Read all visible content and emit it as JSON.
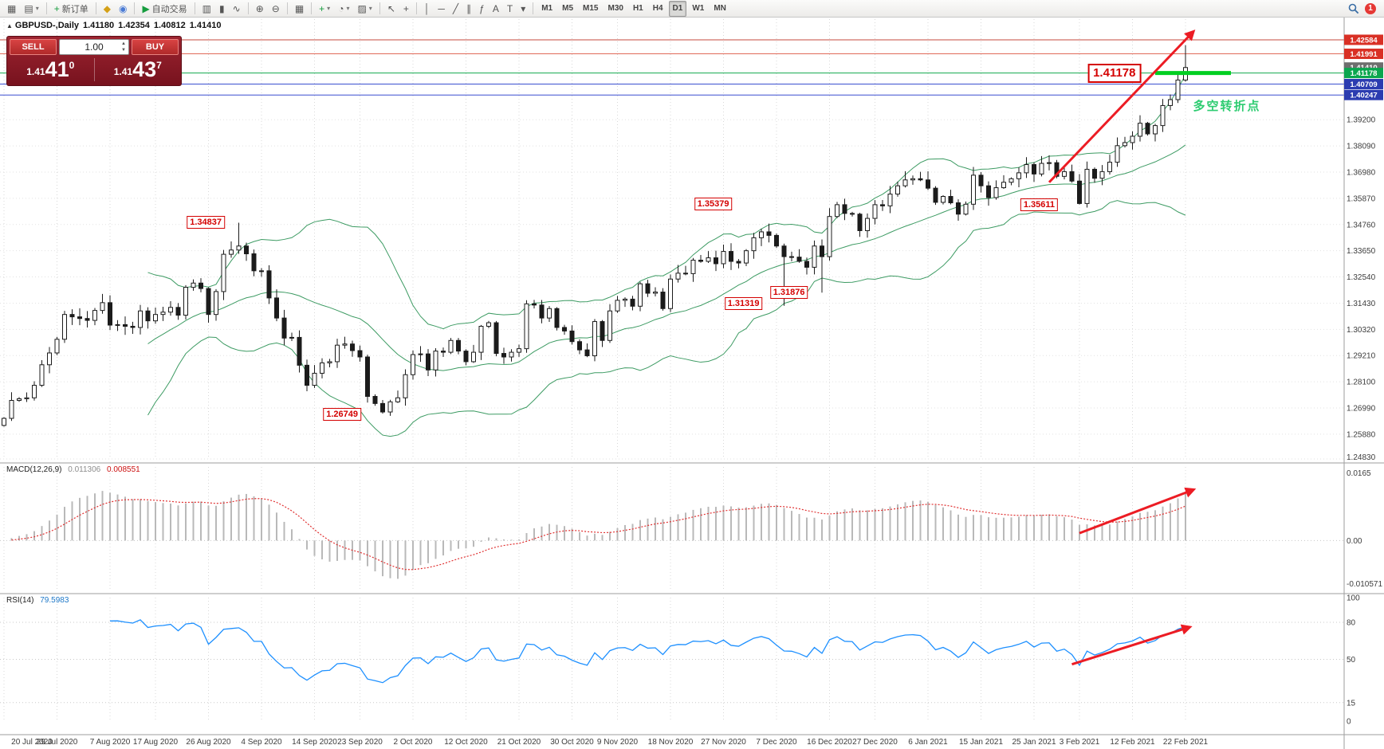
{
  "toolbar": {
    "groups": [
      {
        "items": [
          {
            "n": "new-chart",
            "g": "▦"
          },
          {
            "n": "chart-profiles",
            "g": "▤",
            "arrow": true
          }
        ]
      },
      {
        "items": [
          {
            "n": "new-order",
            "g": "+",
            "gc": "#169c3e",
            "label": "新订单"
          }
        ]
      },
      {
        "items": [
          {
            "n": "deposit",
            "g": "◆",
            "gc": "#d4a017"
          },
          {
            "n": "alerts",
            "g": "◉",
            "gc": "#4a7bd5"
          }
        ]
      },
      {
        "items": [
          {
            "n": "auto-trading",
            "g": "▶",
            "gc": "#169c3e",
            "label": "自动交易"
          }
        ]
      },
      {
        "items": [
          {
            "n": "bar-chart-type",
            "g": "▥"
          },
          {
            "n": "candlestick-type",
            "g": "▮"
          },
          {
            "n": "line-chart-type",
            "g": "∿"
          }
        ]
      },
      {
        "items": [
          {
            "n": "zoom-in",
            "g": "⊕"
          },
          {
            "n": "zoom-out",
            "g": "⊖"
          }
        ]
      },
      {
        "items": [
          {
            "n": "tile-windows",
            "g": "▦"
          }
        ]
      },
      {
        "items": [
          {
            "n": "add-indicator",
            "g": "+",
            "gc": "#169c3e",
            "arrow": true
          },
          {
            "n": "period",
            "g": "◔",
            "arrow": true
          },
          {
            "n": "templates",
            "g": "▨",
            "arrow": true
          }
        ]
      },
      {
        "items": [
          {
            "n": "cursor",
            "g": "↖"
          },
          {
            "n": "crosshair",
            "g": "+"
          }
        ]
      },
      {
        "items": [
          {
            "n": "vertical-line",
            "g": "│"
          },
          {
            "n": "horizontal-line",
            "g": "─"
          },
          {
            "n": "trend-line",
            "g": "╱"
          },
          {
            "n": "channel",
            "g": "∥"
          },
          {
            "n": "fibonacci",
            "g": "ƒ"
          },
          {
            "n": "text",
            "g": "A"
          },
          {
            "n": "text-label",
            "g": "T"
          },
          {
            "n": "shapes",
            "g": "▾"
          }
        ]
      }
    ],
    "timeframes": [
      "M1",
      "M5",
      "M15",
      "M30",
      "H1",
      "H4",
      "D1",
      "W1",
      "MN"
    ],
    "active_timeframe": "D1",
    "notification_count": "1"
  },
  "chart_header": {
    "symbol": "GBPUSD-,Daily",
    "open": "1.41180",
    "high": "1.42354",
    "low": "1.40812",
    "close": "1.41410"
  },
  "one_click": {
    "sell_label": "SELL",
    "buy_label": "BUY",
    "volume": "1.00",
    "bid_prefix": "1.41",
    "bid_big": "41",
    "bid_pip": "0",
    "ask_prefix": "1.41",
    "ask_big": "43",
    "ask_pip": "7"
  },
  "chart_data": {
    "type": "candlestick",
    "symbol": "GBPUSD-",
    "timeframe": "Daily",
    "title": "GBPUSD-,Daily 1.41180 1.42354 1.40812 1.41410",
    "x_labels": [
      "20 Jul 2020",
      "29 Jul 2020",
      "7 Aug 2020",
      "17 Aug 2020",
      "26 Aug 2020",
      "4 Sep 2020",
      "14 Sep 2020",
      "23 Sep 2020",
      "2 Oct 2020",
      "12 Oct 2020",
      "21 Oct 2020",
      "30 Oct 2020",
      "9 Nov 2020",
      "18 Nov 2020",
      "27 Nov 2020",
      "7 Dec 2020",
      "16 Dec 2020",
      "27 Dec 2020",
      "6 Jan 2021",
      "15 Jan 2021",
      "25 Jan 2021",
      "3 Feb 2021",
      "12 Feb 2021",
      "22 Feb 2021"
    ],
    "y_axis": {
      "labels": [
        "1.39200",
        "1.38090",
        "1.36980",
        "1.35870",
        "1.34760",
        "1.33650",
        "1.32540",
        "1.31430",
        "1.30320",
        "1.29210",
        "1.28100",
        "1.26990",
        "1.25880",
        "1.24830"
      ],
      "values": [
        1.392,
        1.3809,
        1.3698,
        1.3587,
        1.3476,
        1.3365,
        1.3254,
        1.3143,
        1.3032,
        1.2921,
        1.281,
        1.2699,
        1.2588,
        1.2483
      ]
    },
    "y_range": [
      1.2483,
      1.4346
    ],
    "closes": [
      1.2655,
      1.2731,
      1.2738,
      1.2742,
      1.2795,
      1.2882,
      1.2932,
      1.299,
      1.3095,
      1.3085,
      1.3078,
      1.307,
      1.3112,
      1.3145,
      1.305,
      1.3052,
      1.3045,
      1.304,
      1.311,
      1.3068,
      1.3095,
      1.3105,
      1.3125,
      1.3092,
      1.321,
      1.3228,
      1.3205,
      1.3095,
      1.3192,
      1.335,
      1.3368,
      1.3385,
      1.3352,
      1.328,
      1.328,
      1.3165,
      1.308,
      1.2995,
      1.2998,
      1.288,
      1.2795,
      1.2846,
      1.289,
      1.2895,
      1.2965,
      1.297,
      1.2942,
      1.2915,
      1.2748,
      1.2718,
      1.2682,
      1.2725,
      1.2742,
      1.284,
      1.2925,
      1.2928,
      1.286,
      1.294,
      1.2935,
      1.2985,
      1.294,
      1.2895,
      1.2935,
      1.3045,
      1.306,
      1.293,
      1.2915,
      1.2935,
      1.295,
      1.314,
      1.3135,
      1.308,
      1.312,
      1.304,
      1.3025,
      1.298,
      1.2945,
      1.292,
      1.3065,
      1.2985,
      1.311,
      1.3155,
      1.316,
      1.313,
      1.3225,
      1.3185,
      1.319,
      1.312,
      1.3245,
      1.327,
      1.3268,
      1.3325,
      1.332,
      1.3335,
      1.331,
      1.3362,
      1.332,
      1.3313,
      1.3365,
      1.342,
      1.3445,
      1.343,
      1.3385,
      1.334,
      1.3338,
      1.332,
      1.3295,
      1.3385,
      1.334,
      1.351,
      1.356,
      1.3523,
      1.352,
      1.345,
      1.3502,
      1.356,
      1.3555,
      1.3605,
      1.364,
      1.3665,
      1.367,
      1.3665,
      1.363,
      1.357,
      1.3595,
      1.3568,
      1.352,
      1.3562,
      1.3685,
      1.364,
      1.359,
      1.3632,
      1.3655,
      1.367,
      1.3695,
      1.373,
      1.369,
      1.3735,
      1.3738,
      1.368,
      1.37,
      1.366,
      1.3565,
      1.371,
      1.3672,
      1.37,
      1.374,
      1.381,
      1.3823,
      1.385,
      1.3905,
      1.386,
      1.3895,
      1.398,
      1.4005,
      1.4088,
      1.4141
    ],
    "candle_overrides": [
      {
        "idx": 31,
        "high": 1.34837
      },
      {
        "idx": 50,
        "low": 1.26749
      },
      {
        "idx": 103,
        "low": 1.31319
      },
      {
        "idx": 108,
        "low": 1.31876
      },
      {
        "idx": 142,
        "low": 1.35611
      },
      {
        "idx": 156,
        "high": 1.42354,
        "low": 1.40812
      }
    ],
    "indicators": {
      "bollinger": {
        "name": "Bollinger Bands",
        "period": 20,
        "deviation": 2,
        "color": "#3d9b63"
      },
      "macd": {
        "name": "MACD(12,26,9)",
        "main_value": "0.011306",
        "signal_value": "0.008551",
        "axis": [
          {
            "label": "0.0165",
            "v": 0.0165
          },
          {
            "label": "0.00",
            "v": 0
          },
          {
            "label": "-0.010571",
            "v": -0.010571
          }
        ],
        "range": [
          -0.0122,
          0.018
        ],
        "histogram_color": "#b9b9b9",
        "signal_color": "#e03131"
      },
      "rsi": {
        "name": "RSI(14)",
        "value": "79.5983",
        "period": 14,
        "axis": [
          {
            "label": "100",
            "v": 100
          },
          {
            "label": "80",
            "v": 80
          },
          {
            "label": "50",
            "v": 50
          },
          {
            "label": "15",
            "v": 15
          },
          {
            "label": "0",
            "v": 0
          }
        ],
        "levels": [
          80,
          50,
          15
        ],
        "color": "#1e90ff"
      }
    },
    "levels": [
      {
        "price": 1.42584,
        "color": "#c64a3c",
        "badge_bg": "#d93025",
        "label": "1.42584"
      },
      {
        "price": 1.41991,
        "color": "#e06a5a",
        "badge_bg": "#d93025",
        "label": "1.41991"
      },
      {
        "price": 1.41178,
        "color": "#12a94e",
        "badge_bg": "#0aa64e",
        "label": "1.41178"
      },
      {
        "price": 1.40709,
        "color": "#3a4fd0",
        "badge_bg": "#2b3cb0",
        "label": "1.40709"
      },
      {
        "price": 1.40247,
        "color": "#3a4fd0",
        "badge_bg": "#2b3cb0",
        "label": "1.40247"
      }
    ],
    "current_price": {
      "price": 1.4141,
      "label": "1.41410",
      "badge_bg": "#6e6e6e"
    },
    "thick_segment": {
      "price": 1.41178,
      "from_idx": 152,
      "to_idx": 162,
      "color": "#00cf21",
      "width": 5
    },
    "price_annotations": [
      {
        "text": "1.34837",
        "idx": 30,
        "price": 1.3484
      },
      {
        "text": "1.26749",
        "idx": 48,
        "price": 1.2672
      },
      {
        "text": "1.35379",
        "idx": 97,
        "price": 1.3562
      },
      {
        "text": "1.31319",
        "idx": 101,
        "price": 1.314
      },
      {
        "text": "1.31876",
        "idx": 107,
        "price": 1.3189
      },
      {
        "text": "1.35611",
        "idx": 140,
        "price": 1.3561
      },
      {
        "text": "1.41178",
        "idx": 151,
        "price": 1.41178,
        "big": true
      }
    ],
    "arrows": [
      {
        "panel": "main",
        "from": [
          138,
          1.3655
        ],
        "to": [
          157,
          1.4292
        ]
      },
      {
        "panel": "macd",
        "from": [
          142,
          0.0018
        ],
        "to": [
          157,
          0.0124
        ]
      },
      {
        "panel": "rsi",
        "from": [
          141,
          46
        ],
        "to": [
          156.5,
          76
        ]
      }
    ],
    "note": {
      "text": "多空转折点",
      "idx": 157,
      "price": 1.3985,
      "color": "#2ecc71"
    },
    "colors": {
      "up_fill": "#ffffff",
      "down_fill": "#1b1b1b",
      "outline": "#1b1b1b",
      "arrow": "#ec1c24",
      "grid": "#d8d8d8"
    }
  }
}
